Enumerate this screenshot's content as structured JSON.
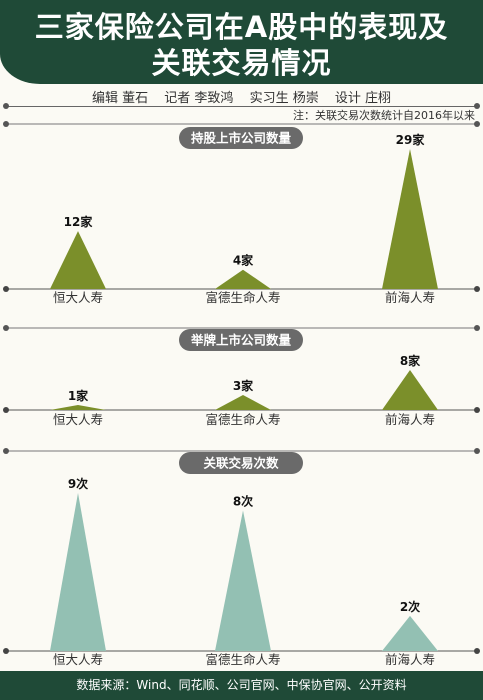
{
  "header": {
    "title_line1": "三家保险公司在A股中的表现及",
    "title_line2": "关联交易情况"
  },
  "credits": {
    "editor": "编辑 董石",
    "reporter": "记者 李致鸿",
    "intern": "实习生 杨崇",
    "designer": "设计 庄栩"
  },
  "note": "注：关联交易次数统计自2016年以来",
  "colors": {
    "header_bg": "#1f4a37",
    "olive": "#7b8f2a",
    "teal": "#93c0b3",
    "pill": "#6a6a6a"
  },
  "chart_data": [
    {
      "type": "bar",
      "title": "持股上市公司数量",
      "categories": [
        "恒大人寿",
        "富德生命人寿",
        "前海人寿"
      ],
      "values": [
        12,
        4,
        29
      ],
      "value_labels": [
        "12家",
        "4家",
        "29家"
      ],
      "color": "#7b8f2a",
      "ylim": [
        0,
        29
      ]
    },
    {
      "type": "bar",
      "title": "举牌上市公司数量",
      "categories": [
        "恒大人寿",
        "富德生命人寿",
        "前海人寿"
      ],
      "values": [
        1,
        3,
        8
      ],
      "value_labels": [
        "1家",
        "3家",
        "8家"
      ],
      "color": "#7b8f2a",
      "ylim": [
        0,
        8
      ]
    },
    {
      "type": "bar",
      "title": "关联交易次数",
      "categories": [
        "恒大人寿",
        "富德生命人寿",
        "前海人寿"
      ],
      "values": [
        9,
        8,
        2
      ],
      "value_labels": [
        "9次",
        "8次",
        "2次"
      ],
      "color": "#93c0b3",
      "ylim": [
        0,
        9
      ]
    }
  ],
  "footer": "数据来源：Wind、同花顺、公司官网、中保协官网、公开资料"
}
